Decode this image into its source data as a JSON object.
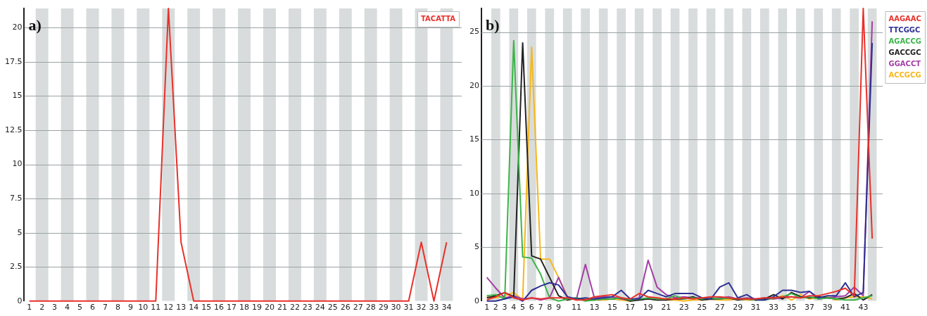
{
  "chart_data": [
    {
      "type": "line",
      "title": "a)",
      "x": [
        1,
        2,
        3,
        4,
        5,
        6,
        7,
        8,
        9,
        10,
        11,
        12,
        13,
        14,
        15,
        16,
        17,
        18,
        19,
        20,
        21,
        22,
        23,
        24,
        25,
        26,
        27,
        28,
        29,
        30,
        31,
        32,
        33,
        34
      ],
      "series": [
        {
          "name": "TACATTA",
          "color": "#e8312b",
          "values": [
            0,
            0,
            0,
            0,
            0,
            0,
            0,
            0,
            0,
            0,
            0,
            21.4,
            4.3,
            0,
            0,
            0,
            0,
            0,
            0,
            0,
            0,
            0,
            0,
            0,
            0,
            0,
            0,
            0,
            0,
            0,
            0,
            4.3,
            0,
            4.3
          ]
        }
      ],
      "xlim": [
        0.6,
        35.2
      ],
      "xticks": [
        1,
        2,
        3,
        4,
        5,
        6,
        7,
        8,
        9,
        10,
        11,
        12,
        13,
        14,
        15,
        16,
        17,
        18,
        19,
        20,
        21,
        22,
        23,
        24,
        25,
        26,
        27,
        28,
        29,
        30,
        31,
        32,
        33,
        34
      ],
      "ylim": [
        0,
        21.4
      ],
      "yticks": [
        0,
        2.5,
        5,
        7.5,
        10,
        12.5,
        15,
        17.5,
        20
      ],
      "bands": [
        {
          "axis": "x",
          "from": 1.5,
          "to": 2.5,
          "color": "#d9dcdc"
        },
        {
          "axis": "x",
          "from": 3.5,
          "to": 4.5,
          "color": "#d9dcdc"
        },
        {
          "axis": "x",
          "from": 5.5,
          "to": 6.5,
          "color": "#d9dcdc"
        },
        {
          "axis": "x",
          "from": 7.5,
          "to": 8.5,
          "color": "#d9dcdc"
        },
        {
          "axis": "x",
          "from": 9.5,
          "to": 10.5,
          "color": "#d9dcdc"
        },
        {
          "axis": "x",
          "from": 11.5,
          "to": 12.5,
          "color": "#d9dcdc"
        },
        {
          "axis": "x",
          "from": 13.5,
          "to": 14.5,
          "color": "#d9dcdc"
        },
        {
          "axis": "x",
          "from": 15.5,
          "to": 16.5,
          "color": "#d9dcdc"
        },
        {
          "axis": "x",
          "from": 17.5,
          "to": 18.5,
          "color": "#d9dcdc"
        },
        {
          "axis": "x",
          "from": 19.5,
          "to": 20.5,
          "color": "#d9dcdc"
        },
        {
          "axis": "x",
          "from": 21.5,
          "to": 22.5,
          "color": "#d9dcdc"
        },
        {
          "axis": "x",
          "from": 23.5,
          "to": 24.5,
          "color": "#d9dcdc"
        },
        {
          "axis": "x",
          "from": 25.5,
          "to": 26.5,
          "color": "#d9dcdc"
        },
        {
          "axis": "x",
          "from": 27.5,
          "to": 28.5,
          "color": "#d9dcdc"
        },
        {
          "axis": "x",
          "from": 29.5,
          "to": 30.5,
          "color": "#d9dcdc"
        },
        {
          "axis": "x",
          "from": 31.5,
          "to": 32.5,
          "color": "#d9dcdc"
        },
        {
          "axis": "x",
          "from": 33.5,
          "to": 34.5,
          "color": "#d9dcdc"
        }
      ],
      "grid": "y",
      "legend": "top right",
      "marker": "none",
      "line_style": "solid"
    },
    {
      "type": "line",
      "title": "b)",
      "x": [
        1,
        2,
        3,
        4,
        5,
        6,
        7,
        8,
        9,
        10,
        11,
        12,
        13,
        14,
        15,
        16,
        17,
        18,
        19,
        20,
        21,
        22,
        23,
        24,
        25,
        26,
        27,
        28,
        29,
        30,
        31,
        32,
        33,
        34,
        35,
        36,
        37,
        38,
        39,
        40,
        41,
        42,
        43,
        44
      ],
      "series": [
        {
          "name": "AAGAAC",
          "color": "#e8312b",
          "values": [
            0.1,
            0.4,
            0.8,
            0.3,
            0.1,
            0.3,
            0.2,
            0.3,
            0.3,
            0.3,
            0.1,
            0.1,
            0.4,
            0.5,
            0.6,
            0.3,
            0.2,
            0.7,
            0.4,
            0.3,
            0.2,
            0.2,
            0.3,
            0.2,
            0.3,
            0.4,
            0.4,
            0.3,
            0.2,
            0.2,
            0.2,
            0.3,
            0.3,
            0.4,
            0.4,
            0.3,
            0.5,
            0.5,
            0.7,
            0.9,
            1.2,
            0.5,
            27.2,
            5.8
          ]
        },
        {
          "name": "TTCGGC",
          "color": "#2e3192",
          "values": [
            0,
            0,
            0.2,
            0.4,
            0,
            1.0,
            1.4,
            1.7,
            1.5,
            0.4,
            0.2,
            0.3,
            0.2,
            0.3,
            0.4,
            1.0,
            0.2,
            0.2,
            1.0,
            0.7,
            0.4,
            0.7,
            0.7,
            0.7,
            0.3,
            0.2,
            1.3,
            1.7,
            0.3,
            0.6,
            0.1,
            0.1,
            0.4,
            1.0,
            1.0,
            0.8,
            0.9,
            0.3,
            0.5,
            0.5,
            1.7,
            0.4,
            0.8,
            24
          ]
        },
        {
          "name": "AGACCG",
          "color": "#3cb44a",
          "values": [
            0.5,
            0.6,
            0.2,
            24.2,
            4.1,
            4.0,
            2.5,
            0.3,
            0,
            0.2,
            0.3,
            0,
            0.1,
            0.2,
            0.2,
            0.3,
            0.1,
            0.2,
            0.3,
            0.2,
            0.2,
            0.5,
            0.2,
            0.3,
            0.2,
            0.3,
            0.2,
            0.3,
            0.2,
            0.2,
            0.1,
            0.1,
            0.3,
            0.4,
            0.7,
            0.3,
            0.4,
            0.2,
            0.3,
            0.2,
            0.1,
            0.1,
            0.3,
            0.5
          ]
        },
        {
          "name": "GACCGC",
          "color": "#222222",
          "values": [
            0.3,
            0.5,
            0.8,
            0.4,
            24.0,
            4.2,
            3.9,
            2.2,
            0.5,
            0.1,
            0.3,
            0.1,
            0.1,
            0.2,
            0.2,
            0.3,
            0,
            0.1,
            0.2,
            0.1,
            0.1,
            0.2,
            0.2,
            0.4,
            0.1,
            0.2,
            0.2,
            0.3,
            0.1,
            0.2,
            0.1,
            0.2,
            0.6,
            0.2,
            0.8,
            0.4,
            0.3,
            0.4,
            0.3,
            0.2,
            0.3,
            0.7,
            0.1,
            0.6
          ]
        },
        {
          "name": "GGACCT",
          "color": "#a43ea6",
          "values": [
            2.2,
            1.2,
            0.3,
            0.5,
            0.2,
            0.3,
            0.1,
            0.3,
            2.2,
            0.3,
            0.2,
            3.4,
            0.3,
            0.4,
            0.4,
            0.2,
            0.1,
            0.3,
            3.8,
            1.3,
            0.6,
            0.3,
            0.4,
            0.3,
            0.3,
            0.2,
            0.3,
            0.4,
            0.2,
            0.3,
            0.2,
            0.3,
            0.2,
            0.3,
            0.4,
            0.3,
            0.9,
            0.2,
            0.3,
            0.4,
            0.5,
            1.3,
            0.5,
            26
          ]
        },
        {
          "name": "ACCGCG",
          "color": "#f5b81c",
          "values": [
            0.4,
            0.3,
            0.5,
            0.8,
            0.1,
            23.6,
            3.9,
            3.9,
            2.2,
            0.4,
            0.1,
            0.2,
            0.1,
            0.1,
            0.2,
            0.1,
            0,
            0.2,
            0.2,
            0.3,
            0.1,
            0.1,
            0,
            0.1,
            0.1,
            0.2,
            0.1,
            0.1,
            0.2,
            0.1,
            0.1,
            0.2,
            0.2,
            0.5,
            0.1,
            0.6,
            0.2,
            0.3,
            0.4,
            0.1,
            0.3,
            0.4,
            0.4,
            0.2
          ]
        }
      ],
      "xlim": [
        0.4,
        45.2
      ],
      "xticks": [
        1,
        2,
        3,
        4,
        5,
        6,
        7,
        8,
        9,
        11,
        13,
        15,
        17,
        19,
        21,
        23,
        25,
        27,
        29,
        31,
        33,
        35,
        37,
        39,
        41,
        43
      ],
      "ylim": [
        0,
        27.2
      ],
      "yticks": [
        0,
        5,
        10,
        15,
        20,
        25
      ],
      "bands": [
        {
          "axis": "x",
          "from": 1.5,
          "to": 2.5,
          "color": "#d9dcdc"
        },
        {
          "axis": "x",
          "from": 3.5,
          "to": 4.5,
          "color": "#d9dcdc"
        },
        {
          "axis": "x",
          "from": 5.5,
          "to": 6.5,
          "color": "#d9dcdc"
        },
        {
          "axis": "x",
          "from": 7.5,
          "to": 8.5,
          "color": "#d9dcdc"
        },
        {
          "axis": "x",
          "from": 9.5,
          "to": 10.5,
          "color": "#d9dcdc"
        },
        {
          "axis": "x",
          "from": 11.5,
          "to": 12.5,
          "color": "#d9dcdc"
        },
        {
          "axis": "x",
          "from": 13.5,
          "to": 14.5,
          "color": "#d9dcdc"
        },
        {
          "axis": "x",
          "from": 15.5,
          "to": 16.5,
          "color": "#d9dcdc"
        },
        {
          "axis": "x",
          "from": 17.5,
          "to": 18.5,
          "color": "#d9dcdc"
        },
        {
          "axis": "x",
          "from": 19.5,
          "to": 20.5,
          "color": "#d9dcdc"
        },
        {
          "axis": "x",
          "from": 21.5,
          "to": 22.5,
          "color": "#d9dcdc"
        },
        {
          "axis": "x",
          "from": 23.5,
          "to": 24.5,
          "color": "#d9dcdc"
        },
        {
          "axis": "x",
          "from": 25.5,
          "to": 26.5,
          "color": "#d9dcdc"
        },
        {
          "axis": "x",
          "from": 27.5,
          "to": 28.5,
          "color": "#d9dcdc"
        },
        {
          "axis": "x",
          "from": 29.5,
          "to": 30.5,
          "color": "#d9dcdc"
        },
        {
          "axis": "x",
          "from": 31.5,
          "to": 32.5,
          "color": "#d9dcdc"
        },
        {
          "axis": "x",
          "from": 33.5,
          "to": 34.5,
          "color": "#d9dcdc"
        },
        {
          "axis": "x",
          "from": 35.5,
          "to": 36.5,
          "color": "#d9dcdc"
        },
        {
          "axis": "x",
          "from": 37.5,
          "to": 38.5,
          "color": "#d9dcdc"
        },
        {
          "axis": "x",
          "from": 39.5,
          "to": 40.5,
          "color": "#d9dcdc"
        },
        {
          "axis": "x",
          "from": 41.5,
          "to": 42.5,
          "color": "#d9dcdc"
        },
        {
          "axis": "x",
          "from": 43.5,
          "to": 44.5,
          "color": "#d9dcdc"
        }
      ],
      "grid": "y",
      "legend": "top right",
      "marker": "none",
      "line_style": "solid"
    }
  ]
}
